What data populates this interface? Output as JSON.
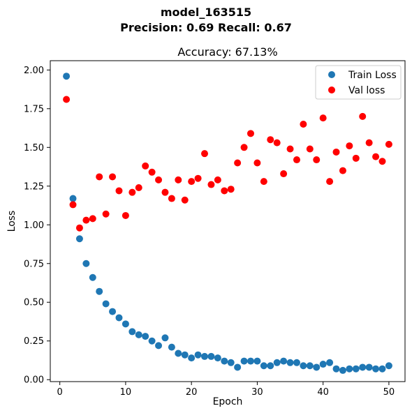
{
  "figure": {
    "suptitle_line1": "model_163515",
    "suptitle_line2": "Precision: 0.69 Recall: 0.67"
  },
  "chart_data": {
    "type": "scatter",
    "title": "Accuracy: 67.13%",
    "xlabel": "Epoch",
    "ylabel": "Loss",
    "xlim": [
      -1.45,
      52.45
    ],
    "ylim": [
      -0.0125,
      2.06
    ],
    "xticks": [
      0,
      10,
      20,
      30,
      40,
      50
    ],
    "yticks": [
      0.0,
      0.25,
      0.5,
      0.75,
      1.0,
      1.25,
      1.5,
      1.75,
      2.0
    ],
    "xtick_labels": [
      "0",
      "10",
      "20",
      "30",
      "40",
      "50"
    ],
    "ytick_labels": [
      "0.00",
      "0.25",
      "0.50",
      "0.75",
      "1.00",
      "1.25",
      "1.50",
      "1.75",
      "2.00"
    ],
    "grid": false,
    "legend_position": "top-right",
    "x": [
      1,
      2,
      3,
      4,
      5,
      6,
      7,
      8,
      9,
      10,
      11,
      12,
      13,
      14,
      15,
      16,
      17,
      18,
      19,
      20,
      21,
      22,
      23,
      24,
      25,
      26,
      27,
      28,
      29,
      30,
      31,
      32,
      33,
      34,
      35,
      36,
      37,
      38,
      39,
      40,
      41,
      42,
      43,
      44,
      45,
      46,
      47,
      48,
      49,
      50
    ],
    "series": [
      {
        "name": "Train Loss",
        "color": "#1f77b4",
        "values": [
          1.96,
          1.17,
          0.91,
          0.75,
          0.66,
          0.57,
          0.49,
          0.44,
          0.4,
          0.36,
          0.31,
          0.29,
          0.28,
          0.25,
          0.22,
          0.27,
          0.21,
          0.17,
          0.16,
          0.14,
          0.16,
          0.15,
          0.15,
          0.14,
          0.12,
          0.11,
          0.08,
          0.12,
          0.12,
          0.12,
          0.09,
          0.09,
          0.11,
          0.12,
          0.11,
          0.11,
          0.09,
          0.09,
          0.08,
          0.1,
          0.11,
          0.07,
          0.06,
          0.07,
          0.07,
          0.08,
          0.08,
          0.07,
          0.07,
          0.09
        ]
      },
      {
        "name": "Val loss",
        "color": "#ff0000",
        "values": [
          1.81,
          1.13,
          0.98,
          1.03,
          1.04,
          1.31,
          1.07,
          1.31,
          1.22,
          1.06,
          1.21,
          1.24,
          1.38,
          1.34,
          1.29,
          1.21,
          1.17,
          1.29,
          1.16,
          1.28,
          1.3,
          1.46,
          1.26,
          1.29,
          1.22,
          1.23,
          1.4,
          1.5,
          1.59,
          1.4,
          1.28,
          1.55,
          1.53,
          1.33,
          1.49,
          1.42,
          1.65,
          1.49,
          1.42,
          1.69,
          1.28,
          1.47,
          1.35,
          1.51,
          1.43,
          1.7,
          1.53,
          1.44,
          1.41,
          1.52
        ]
      }
    ]
  }
}
